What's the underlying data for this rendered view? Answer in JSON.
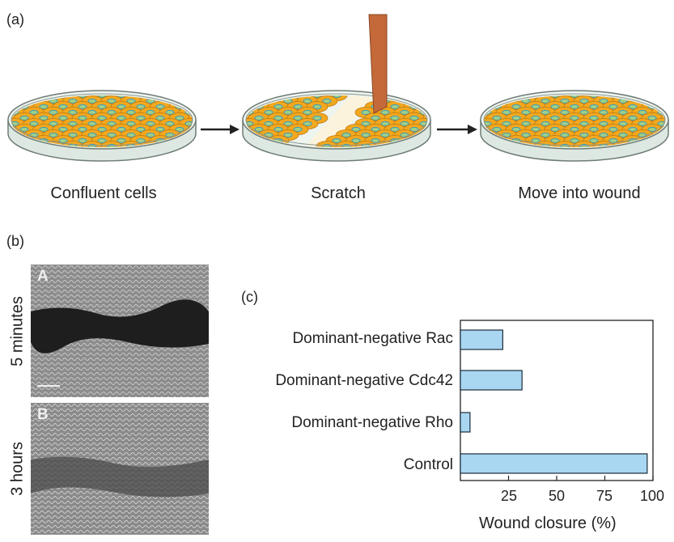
{
  "panel_a": {
    "label": "(a)",
    "steps": [
      "Confluent cells",
      "Scratch",
      "Move into wound"
    ]
  },
  "panel_b": {
    "label": "(b)",
    "micrographs": [
      {
        "letter": "A",
        "time_label": "5 minutes"
      },
      {
        "letter": "B",
        "time_label": "3 hours"
      }
    ]
  },
  "panel_c": {
    "label": "(c)"
  },
  "colors": {
    "cell_fill": "#f2a81f",
    "cell_edge": "#c07b10",
    "nucleus_fill": "#9ccf8a",
    "nucleus_ring": "#3b9ab8",
    "dish": "#e8f0ea",
    "dish_edge": "#6e7b75",
    "scraper": "#c46a3a",
    "bar_fill": "#a9d7f2",
    "bar_edge": "#1b2b3a"
  },
  "chart_data": {
    "type": "bar",
    "orientation": "horizontal",
    "categories": [
      "Dominant-negative Rac",
      "Dominant-negative Cdc42",
      "Dominant-negative Rho",
      "Control"
    ],
    "values": [
      22,
      32,
      5,
      97
    ],
    "xlabel": "Wound closure (%)",
    "xlim": [
      0,
      100
    ],
    "xticks": [
      25,
      50,
      75,
      100
    ]
  }
}
